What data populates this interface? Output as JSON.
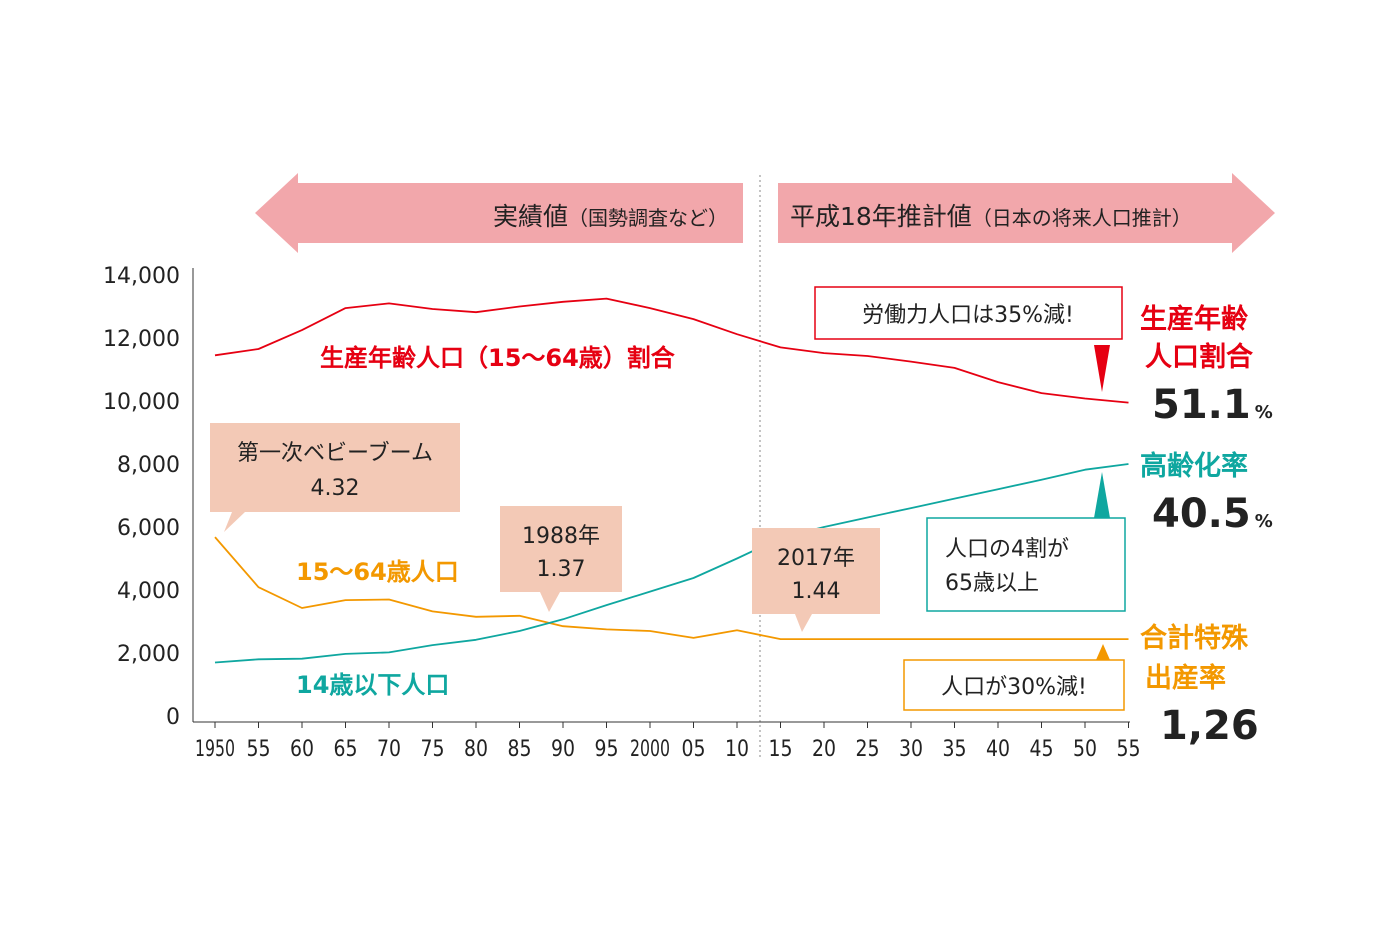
{
  "chart_data": {
    "type": "line",
    "x": [
      "1950",
      "55",
      "60",
      "65",
      "70",
      "75",
      "80",
      "85",
      "90",
      "95",
      "2000",
      "05",
      "10",
      "15",
      "20",
      "25",
      "30",
      "35",
      "40",
      "45",
      "50",
      "55"
    ],
    "yticks": [
      "0",
      "2,000",
      "4,000",
      "6,000",
      "8,000",
      "10,000",
      "12,000",
      "14,000"
    ],
    "ylim": [
      0,
      14000
    ],
    "grid": false,
    "series": [
      {
        "name": "生産年齢人口（15〜64歳）割合",
        "color": "#e60012",
        "values": [
          11450,
          11650,
          12250,
          12950,
          13100,
          12920,
          12820,
          13000,
          13150,
          13250,
          12950,
          12600,
          12120,
          11700,
          11520,
          11430,
          11250,
          11050,
          10600,
          10250,
          10080,
          9950
        ]
      },
      {
        "name": "15〜64歳人口",
        "color": "#f39800",
        "values": [
          5680,
          4090,
          3430,
          3680,
          3700,
          3320,
          3150,
          3180,
          2850,
          2750,
          2700,
          2480,
          2720,
          2440,
          2440,
          2440,
          2440,
          2440,
          2440,
          2440,
          2440,
          2440
        ]
      },
      {
        "name": "14歳以下人口",
        "color": "#0fa7a0",
        "values": [
          1700,
          1800,
          1820,
          1970,
          2020,
          2250,
          2420,
          2700,
          3070,
          3520,
          3950,
          4380,
          5000,
          5650,
          6000,
          6300,
          6600,
          6900,
          7200,
          7500,
          7820,
          8000
        ]
      }
    ],
    "banners": {
      "actual": {
        "main": "実績値",
        "sub": "（国勢調査など）"
      },
      "projected": {
        "main": "平成18年推計値",
        "sub": "（日本の将来人口推計）"
      }
    },
    "callouts": {
      "baby_boom": {
        "line1": "第一次ベビーブーム",
        "line2": "4.32"
      },
      "y1988": {
        "line1": "1988年",
        "line2": "1.37"
      },
      "y2017": {
        "line1": "2017年",
        "line2": "1.44"
      },
      "labor": "労働力人口は35%減!",
      "aging": {
        "line1": "人口の4割が",
        "line2": "65歳以上"
      },
      "population": "人口が30%減!"
    },
    "side_labels": {
      "working_age": {
        "line1": "生産年齢",
        "line2": "人口割合",
        "value": "51.1",
        "unit": "%"
      },
      "aging_rate": {
        "line1": "高齢化率",
        "value": "40.5",
        "unit": "%"
      },
      "fertility": {
        "line1": "合計特殊",
        "line2": "出産率",
        "value": "1,26"
      }
    },
    "colors": {
      "banner": "#f2a7ab",
      "callout": "#f3c9b6",
      "red": "#e60012",
      "orange": "#f39800",
      "teal": "#0fa7a0"
    }
  }
}
